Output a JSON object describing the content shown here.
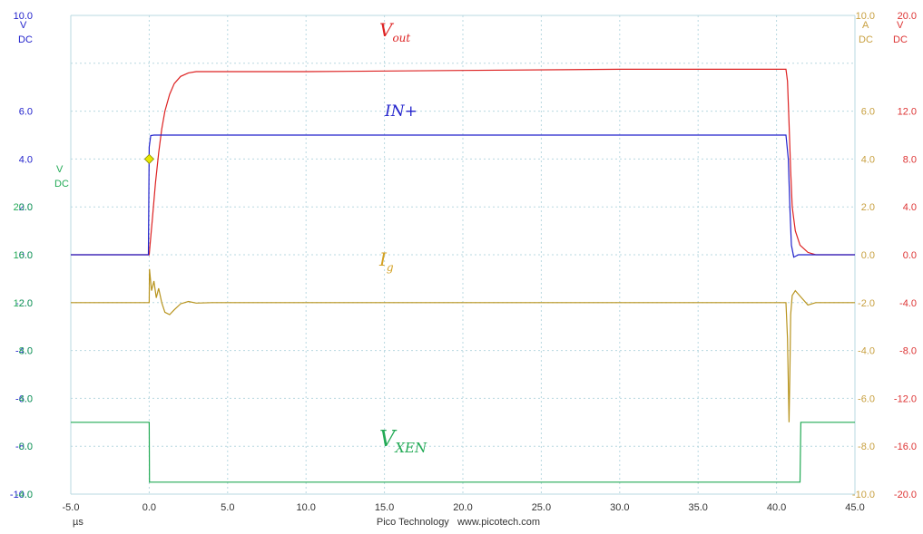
{
  "chart_data": {
    "type": "line",
    "title": "",
    "x": {
      "unit": "µs",
      "range": [
        -5.0,
        45.0
      ],
      "ticks": [
        "-5.0",
        "0.0",
        "5.0",
        "10.0",
        "15.0",
        "20.0",
        "25.0",
        "30.0",
        "35.0",
        "40.0",
        "45.0"
      ]
    },
    "axes": [
      {
        "id": "blue",
        "side": "left",
        "color": "#2222cc",
        "unit": "V",
        "coupling": "DC",
        "range": [
          -10.0,
          10.0
        ],
        "ticks": [
          "10.0",
          "6.0",
          "4.0",
          "2.0",
          "0.0",
          "-2.0",
          "-4.0",
          "-6.0",
          "-8.0",
          "-10.0"
        ]
      },
      {
        "id": "green",
        "side": "left",
        "color": "#22aa55",
        "unit": "V",
        "coupling": "DC",
        "range": [
          -4.0,
          36.0
        ],
        "ticks": [
          "20.0",
          "16.0",
          "12.0",
          "8.0",
          "4.0",
          "0.0",
          "-4.0"
        ]
      },
      {
        "id": "gold",
        "side": "right",
        "color": "#c8a040",
        "unit": "A",
        "coupling": "DC",
        "range": [
          -10.0,
          10.0
        ],
        "ticks": [
          "10.0",
          "6.0",
          "4.0",
          "2.0",
          "0.0",
          "-2.0",
          "-4.0",
          "-6.0",
          "-8.0",
          "-10.0"
        ]
      },
      {
        "id": "red",
        "side": "right",
        "color": "#dd3333",
        "unit": "V",
        "coupling": "DC",
        "range": [
          -20.0,
          20.0
        ],
        "ticks": [
          "20.0",
          "12.0",
          "8.0",
          "4.0",
          "0.0",
          "-4.0",
          "-8.0",
          "-12.0",
          "-16.0",
          "-20.0"
        ]
      }
    ],
    "series": [
      {
        "name": "V_out",
        "axis": "red",
        "color": "#dd2222",
        "points": [
          [
            -5,
            0
          ],
          [
            0,
            0
          ],
          [
            0.05,
            0.8
          ],
          [
            0.2,
            3
          ],
          [
            0.4,
            6
          ],
          [
            0.6,
            8.5
          ],
          [
            0.8,
            10.5
          ],
          [
            1.0,
            12
          ],
          [
            1.3,
            13.4
          ],
          [
            1.6,
            14.3
          ],
          [
            2.0,
            14.9
          ],
          [
            2.5,
            15.2
          ],
          [
            3.0,
            15.3
          ],
          [
            10,
            15.3
          ],
          [
            20,
            15.4
          ],
          [
            30,
            15.5
          ],
          [
            40.6,
            15.5
          ],
          [
            40.7,
            14.5
          ],
          [
            40.8,
            11
          ],
          [
            40.9,
            7
          ],
          [
            41.0,
            4
          ],
          [
            41.2,
            2
          ],
          [
            41.5,
            0.8
          ],
          [
            42,
            0.2
          ],
          [
            42.5,
            0
          ],
          [
            45,
            0
          ]
        ]
      },
      {
        "name": "IN+",
        "axis": "blue",
        "color": "#2222cc",
        "points": [
          [
            -5,
            0
          ],
          [
            -0.05,
            0
          ],
          [
            0,
            4.5
          ],
          [
            0.1,
            4.98
          ],
          [
            0.3,
            5.0
          ],
          [
            40.6,
            5.0
          ],
          [
            40.75,
            4.0
          ],
          [
            40.85,
            2.0
          ],
          [
            40.95,
            0.4
          ],
          [
            41.1,
            -0.1
          ],
          [
            41.4,
            0
          ],
          [
            45,
            0
          ]
        ]
      },
      {
        "name": "I_g",
        "axis": "gold",
        "color": "#b8941e",
        "points": [
          [
            -5,
            -2
          ],
          [
            0,
            -2
          ],
          [
            0.02,
            -0.6
          ],
          [
            0.15,
            -1.5
          ],
          [
            0.3,
            -1.1
          ],
          [
            0.45,
            -1.8
          ],
          [
            0.6,
            -1.4
          ],
          [
            0.8,
            -2.0
          ],
          [
            1.0,
            -2.4
          ],
          [
            1.3,
            -2.5
          ],
          [
            1.6,
            -2.3
          ],
          [
            2.0,
            -2.05
          ],
          [
            2.5,
            -1.95
          ],
          [
            3.0,
            -2.02
          ],
          [
            4.0,
            -2.0
          ],
          [
            40.6,
            -2.0
          ],
          [
            40.7,
            -3.5
          ],
          [
            40.8,
            -7.0
          ],
          [
            40.85,
            -5.0
          ],
          [
            40.9,
            -2.5
          ],
          [
            41.0,
            -1.7
          ],
          [
            41.2,
            -1.5
          ],
          [
            41.6,
            -1.8
          ],
          [
            42.0,
            -2.1
          ],
          [
            42.5,
            -2.0
          ],
          [
            45,
            -2
          ]
        ]
      },
      {
        "name": "V_XEN",
        "axis": "green",
        "color": "#22aa55",
        "points": [
          [
            -5,
            2
          ],
          [
            0,
            2
          ],
          [
            0.02,
            -3
          ],
          [
            10,
            -3
          ],
          [
            20,
            -3
          ],
          [
            30,
            -3
          ],
          [
            41.0,
            -3
          ],
          [
            41.5,
            -3
          ],
          [
            41.55,
            2
          ],
          [
            45,
            2
          ]
        ]
      }
    ],
    "labels": [
      {
        "id": "vout",
        "main": "V",
        "sub": "out",
        "color": "#dd2222"
      },
      {
        "id": "inp",
        "main": "IN+",
        "sub": "",
        "color": "#2222cc"
      },
      {
        "id": "ig",
        "main": "I",
        "sub": "g",
        "color": "#d4a020"
      },
      {
        "id": "vxen",
        "main": "V",
        "sub": "XEN",
        "color": "#22aa55"
      }
    ],
    "trigger_marker": {
      "x": 0.0,
      "axis": "blue",
      "y": 4.0,
      "color": "#e8e800"
    },
    "grid": true,
    "footer": "Pico Technology   www.picotech.com"
  }
}
